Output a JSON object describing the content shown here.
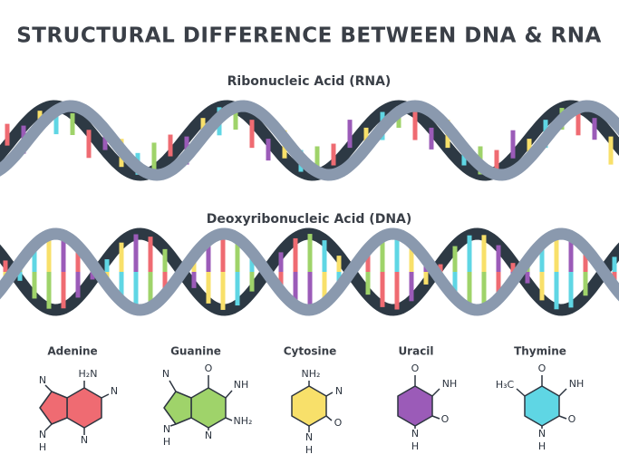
{
  "header": {
    "title": "STRUCTURAL DIFFERENCE BETWEEN DNA & RNA"
  },
  "rna": {
    "label": "Ribonucleic Acid (RNA)"
  },
  "dna": {
    "label": "Deoxyribonucleic Acid (DNA)"
  },
  "bases": [
    {
      "name": "Adenine",
      "atoms": [
        "N",
        "H₂N",
        "N",
        "N",
        "N",
        "H"
      ]
    },
    {
      "name": "Guanine",
      "atoms": [
        "N",
        "O",
        "NH",
        "NH₂",
        "N",
        "N",
        "H"
      ]
    },
    {
      "name": "Cytosine",
      "atoms": [
        "NH₂",
        "N",
        "O",
        "N",
        "H"
      ]
    },
    {
      "name": "Uracil",
      "atoms": [
        "O",
        "NH",
        "O",
        "N",
        "H"
      ]
    },
    {
      "name": "Thymine",
      "atoms": [
        "H₃C",
        "O",
        "NH",
        "O",
        "N",
        "H"
      ]
    }
  ]
}
